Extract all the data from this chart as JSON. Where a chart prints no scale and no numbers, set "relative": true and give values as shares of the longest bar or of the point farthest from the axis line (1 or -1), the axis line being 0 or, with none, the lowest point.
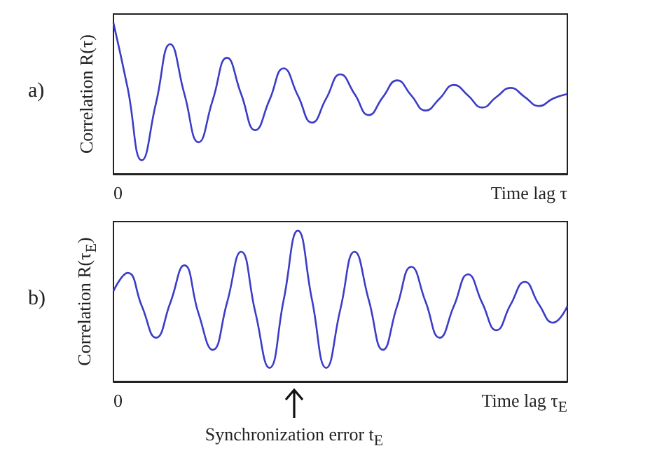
{
  "chart_data": [
    {
      "type": "line",
      "title": "a)",
      "ylabel": "Correlation R(τ)",
      "xlabel": "Time lag τ",
      "relative": true,
      "marker": "none",
      "annotations": [
        "0"
      ],
      "categories": [
        null,
        null,
        null,
        null,
        null,
        null,
        null,
        null,
        null,
        null,
        null,
        null,
        null,
        null,
        null,
        null,
        null,
        null,
        null,
        null,
        null,
        null,
        null,
        null,
        null,
        null,
        null,
        null,
        null,
        null,
        null,
        null,
        null
      ],
      "series": [
        {
          "color": "#3c3cc8",
          "values": [
            1.0,
            0.57,
            0.09,
            0.47,
            0.86,
            0.53,
            0.21,
            0.49,
            0.77,
            0.53,
            0.29,
            0.49,
            0.7,
            0.52,
            0.34,
            0.5,
            0.66,
            0.53,
            0.39,
            0.51,
            0.62,
            0.52,
            0.42,
            0.5,
            0.59,
            0.52,
            0.44,
            0.51,
            0.57,
            0.51,
            0.45,
            0.5,
            0.53
          ]
        }
      ]
    },
    {
      "type": "line",
      "title": "b)",
      "ylabel": "Correlation R(τ$_{E}$)",
      "xlabel": "Time lag τ$_{E}$",
      "relative": true,
      "marker": "none",
      "annotations": [
        "0",
        "Synchronization error t$_{E}$"
      ],
      "categories": [
        null,
        null,
        null,
        null,
        null,
        null,
        null,
        null,
        null,
        null,
        null,
        null,
        null,
        null,
        null,
        null,
        null,
        null,
        null,
        null,
        null,
        null,
        null,
        null,
        null,
        null,
        null,
        null,
        null,
        null,
        null,
        null,
        null
      ],
      "series": [
        {
          "color": "#3c3cc8",
          "values": [
            0.6,
            0.72,
            0.5,
            0.29,
            0.52,
            0.77,
            0.45,
            0.21,
            0.52,
            0.86,
            0.46,
            0.09,
            0.54,
            1.0,
            0.54,
            0.09,
            0.48,
            0.86,
            0.54,
            0.21,
            0.5,
            0.76,
            0.53,
            0.29,
            0.5,
            0.71,
            0.52,
            0.34,
            0.51,
            0.66,
            0.51,
            0.39,
            0.5
          ]
        }
      ]
    }
  ]
}
